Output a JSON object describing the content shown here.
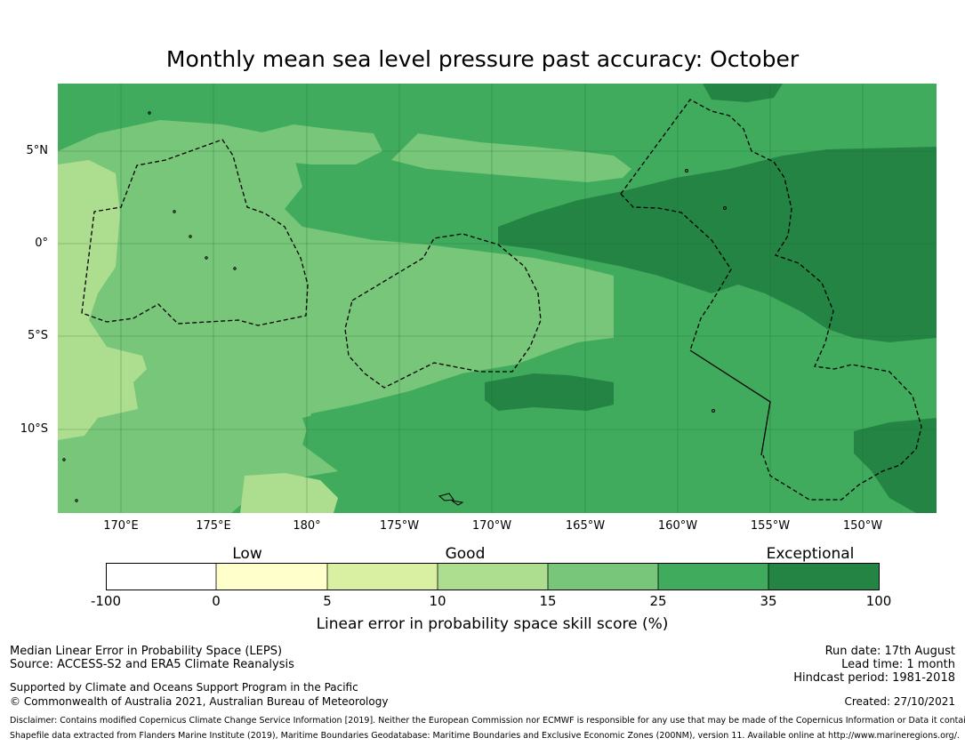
{
  "title": "Monthly mean sea level pressure past accuracy: October",
  "colors": {
    "c0": "#ffffff",
    "c1": "#ffffcc",
    "c2": "#d9f0a3",
    "c3": "#addd8e",
    "c4": "#78c679",
    "c5": "#41ab5d",
    "c6": "#238443",
    "grid": "#1e6a35"
  },
  "map": {
    "lon_labels": [
      "170°E",
      "175°E",
      "180°",
      "175°W",
      "170°W",
      "165°W",
      "160°W",
      "155°W",
      "150°W"
    ],
    "lat_labels": [
      "5°N",
      "0°",
      "5°S",
      "10°S"
    ]
  },
  "colorbar": {
    "categories": [
      "Low",
      "Good",
      "Exceptional"
    ],
    "ticks": [
      "-100",
      "0",
      "5",
      "10",
      "15",
      "25",
      "35",
      "100"
    ],
    "xlabel": "Linear error in probability space skill score (%)"
  },
  "footer": {
    "left_line1": "Median Linear Error in Probability Space (LEPS)",
    "left_line2": "Source: ACCESS-S2 and ERA5 Climate Reanalysis",
    "left_line3": "Supported by Climate and Oceans Support Program in the Pacific",
    "left_line4": "© Commonwealth of Australia 2021, Australian Bureau of Meteorology",
    "run_date": "Run date: 17th August",
    "lead_time": "Lead time: 1 month",
    "hindcast": "Hindcast period: 1981-2018",
    "created": "Created: 27/10/2021",
    "disclaimer": "Disclaimer: Contains modified Copernicus Climate Change Service Information [2019]. Neither the European Commission nor ECMWF is responsible for any use that may be made of the Copernicus Information or Data it contains.",
    "shapefile": "Shapefile data extracted from Flanders Marine Institute (2019), Maritime Boundaries Geodatabase: Maritime Boundaries and Exclusive Economic Zones (200NM), version 11. Available online at http://www.marineregions.org/."
  }
}
